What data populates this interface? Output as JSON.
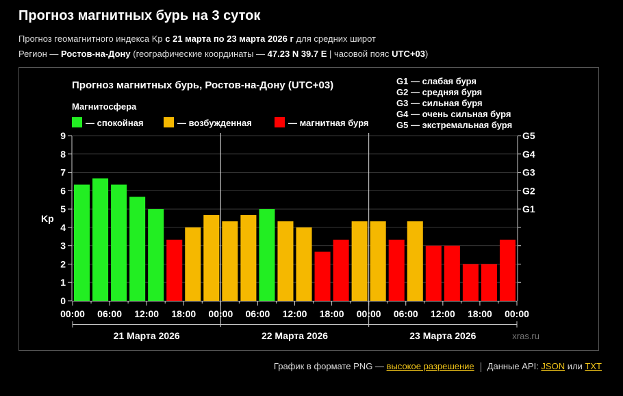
{
  "header": {
    "title": "Прогноз магнитных бурь на 3 суток",
    "sub1": {
      "prefix": "Прогноз геомагнитного индекса Kp ",
      "range": "с 21 марта по 23 марта 2026 г",
      "suffix": " для средних широт"
    },
    "sub2": {
      "prefix": "Регион — ",
      "region": "Ростов-на-Дону",
      "coords_prefix": " (географические координаты — ",
      "coords": "47.23 N 39.7 E",
      "tz_prefix": " | часовой пояс ",
      "tz": "UTC+03",
      "suffix": ")"
    }
  },
  "colors": {
    "calm": "#ff0000",
    "excited": "#f5b800",
    "storm": "#22ee22"
  },
  "chart_data": {
    "type": "bar",
    "title": "Прогноз магнитных бурь, Ростов-на-Дону (UTC+03)",
    "legend_title": "Магнитосфера",
    "legend": [
      {
        "label": "— спокойная",
        "color": "#22ee22"
      },
      {
        "label": "— возбужденная",
        "color": "#f5b800"
      },
      {
        "label": "— магнитная буря",
        "color": "#ff0000"
      }
    ],
    "g_legend": [
      "G1 — слабая буря",
      "G2 — средняя буря",
      "G3 — сильная буря",
      "G4 — очень сильная буря",
      "G5 — экстремальная буря"
    ],
    "ylabel": "Kp",
    "ylim": [
      0,
      9
    ],
    "y_ticks": [
      0,
      1,
      2,
      3,
      4,
      5,
      6,
      7,
      8,
      9
    ],
    "g_ticks": [
      {
        "label": "G1",
        "value": 5
      },
      {
        "label": "G2",
        "value": 6
      },
      {
        "label": "G3",
        "value": 7
      },
      {
        "label": "G4",
        "value": 8
      },
      {
        "label": "G5",
        "value": 9
      }
    ],
    "x_tick_labels": [
      "00:00",
      "06:00",
      "12:00",
      "18:00",
      "00:00",
      "06:00",
      "12:00",
      "18:00",
      "00:00",
      "06:00",
      "12:00",
      "18:00",
      "00:00"
    ],
    "days": [
      "21 Марта 2026",
      "22 Марта 2026",
      "23 Марта 2026"
    ],
    "watermark": "xras.ru",
    "values": [
      6.33,
      6.67,
      6.33,
      5.67,
      5.0,
      3.33,
      4.0,
      4.67,
      4.33,
      4.67,
      5.0,
      4.33,
      4.0,
      2.67,
      3.33,
      4.33,
      4.33,
      3.33,
      4.33,
      3.0,
      3.0,
      2.0,
      2.0,
      3.33
    ],
    "levels": [
      "storm",
      "storm",
      "storm",
      "storm",
      "storm",
      "calm",
      "excited",
      "excited",
      "excited",
      "excited",
      "storm",
      "excited",
      "excited",
      "calm",
      "calm",
      "excited",
      "excited",
      "calm",
      "excited",
      "calm",
      "calm",
      "calm",
      "calm",
      "calm"
    ]
  },
  "footer": {
    "png_text": "График в формате PNG — ",
    "png_link": "высокое разрешение",
    "api_text": "Данные API: ",
    "json_link": "JSON",
    "or_text": " или ",
    "txt_link": "TXT"
  }
}
